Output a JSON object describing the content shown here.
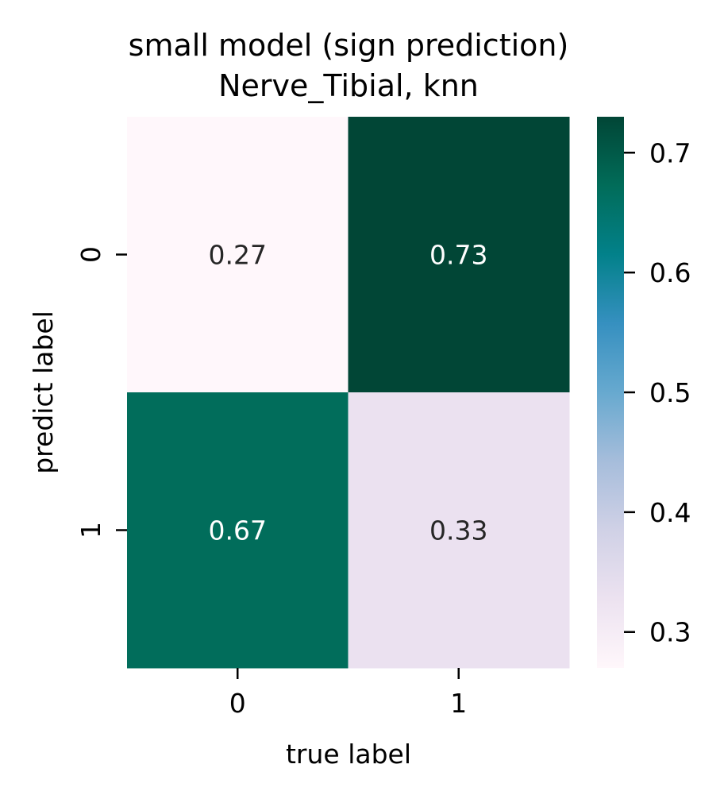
{
  "chart_data": {
    "type": "heatmap",
    "title_line1": "small model (sign prediction)",
    "title_line2": "Nerve_Tibial, knn",
    "xlabel": "true label",
    "ylabel": "predict label",
    "x_categories": [
      "0",
      "1"
    ],
    "y_categories": [
      "0",
      "1"
    ],
    "cell_labels": [
      [
        "0.27",
        "0.73"
      ],
      [
        "0.67",
        "0.33"
      ]
    ],
    "values": [
      [
        0.27,
        0.73
      ],
      [
        0.67,
        0.33
      ]
    ],
    "colorbar": {
      "range": [
        0.27,
        0.73
      ],
      "ticks": [
        0.3,
        0.4,
        0.5,
        0.6,
        0.7
      ],
      "tick_labels": [
        "0.3",
        "0.4",
        "0.5",
        "0.6",
        "0.7"
      ],
      "colormap": "PuBuGn",
      "stops": [
        "#fff7fb",
        "#ece2f0",
        "#d0d1e6",
        "#a6bddb",
        "#67a9cf",
        "#3690c0",
        "#02818a",
        "#016c59",
        "#014636"
      ]
    },
    "dark_text_color": "#262626",
    "light_text_color": "#ffffff"
  }
}
